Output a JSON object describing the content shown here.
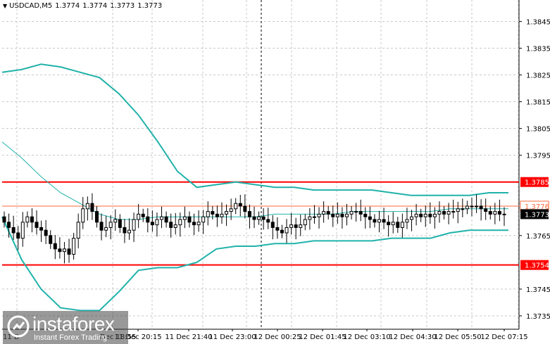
{
  "header": {
    "symbol": "USDCAD,M5",
    "quotes": [
      "1.3774",
      "1.3774",
      "1.3773",
      "1.3773"
    ]
  },
  "brand": {
    "name": "instaforex",
    "tagline": "Instant Forex Trading",
    "logo_icon": "instaforex-logo-icon"
  },
  "colors": {
    "bollinger": "#20b2aa",
    "moving_average": "#20b2aa",
    "support_resistance": "#ff0000",
    "grid": "#c8c8c8",
    "ask_line": "#ff6a3d",
    "candle": "#000000",
    "price_label_bg": "#ff0000",
    "current_price_bg": "#000000"
  },
  "chart_data": {
    "type": "candlestick",
    "ylim": [
      1.373,
      1.3853
    ],
    "y_ticks": [
      "1.3845",
      "1.3835",
      "1.3825",
      "1.3815",
      "1.3805",
      "1.3795",
      "1.3785",
      "1.3776",
      "1.3773",
      "1.3765",
      "1.3754",
      "1.3745",
      "1.3735"
    ],
    "x_ticks": [
      "11 Dec 20:15",
      "11 Dec 21:40",
      "11 Dec 23:00",
      "12 Dec 00:25",
      "12 Dec 01:45",
      "12 Dec 03:10",
      "12 Dec 04:30",
      "12 Dec 05:50",
      "12 Dec 07:15"
    ],
    "x_ticks_partial": [
      "11 D",
      "Dec 18:55"
    ],
    "grid": true,
    "levels": [
      {
        "value": 1.3785,
        "label": "1.3785",
        "kind": "resistance"
      },
      {
        "value": 1.3754,
        "label": "1.3754",
        "kind": "support"
      }
    ],
    "ask_line": {
      "value": 1.3776,
      "label": "1.3776"
    },
    "current_price": {
      "value": 1.3773,
      "label": "1.3773"
    },
    "closes": [
      1.377,
      1.3768,
      1.3766,
      1.3764,
      1.377,
      1.3772,
      1.377,
      1.3768,
      1.3767,
      1.3765,
      1.3762,
      1.376,
      1.3759,
      1.376,
      1.3758,
      1.3764,
      1.377,
      1.3775,
      1.3777,
      1.3774,
      1.377,
      1.3767,
      1.3768,
      1.377,
      1.3771,
      1.3768,
      1.3766,
      1.3767,
      1.3771,
      1.3773,
      1.3772,
      1.377,
      1.3769,
      1.3771,
      1.3772,
      1.377,
      1.3768,
      1.3769,
      1.3771,
      1.3772,
      1.377,
      1.3769,
      1.377,
      1.3772,
      1.3774,
      1.3773,
      1.3772,
      1.3773,
      1.3774,
      1.3775,
      1.3777,
      1.3776,
      1.3774,
      1.3772,
      1.3771,
      1.3772,
      1.3771,
      1.377,
      1.3768,
      1.3767,
      1.3766,
      1.3768,
      1.3769,
      1.3768,
      1.3769,
      1.3771,
      1.3772,
      1.3772,
      1.3773,
      1.3774,
      1.3773,
      1.3772,
      1.3773,
      1.3772,
      1.3773,
      1.3774,
      1.3774,
      1.3773,
      1.3772,
      1.3771,
      1.377,
      1.3771,
      1.377,
      1.3769,
      1.377,
      1.3768,
      1.377,
      1.3771,
      1.3772,
      1.3773,
      1.3772,
      1.3773,
      1.3772,
      1.3773,
      1.3774,
      1.3773,
      1.3774,
      1.3774,
      1.3775,
      1.3775,
      1.3776,
      1.3776,
      1.3776,
      1.3775,
      1.3774,
      1.3773,
      1.3774,
      1.3773,
      1.3773
    ],
    "bollinger_upper": [
      1.3826,
      1.3827,
      1.3829,
      1.3828,
      1.3826,
      1.3824,
      1.3818,
      1.381,
      1.38,
      1.3789,
      1.3783,
      1.3784,
      1.3785,
      1.3784,
      1.3783,
      1.3783,
      1.3782,
      1.3782,
      1.3782,
      1.3782,
      1.3781,
      1.378,
      1.378,
      1.378,
      1.378,
      1.3781,
      1.3781
    ],
    "bollinger_middle": [
      1.38,
      1.3794,
      1.3787,
      1.3781,
      1.3777,
      1.3773,
      1.3771,
      1.3771,
      1.3772,
      1.3772,
      1.3772,
      1.3772,
      1.3772,
      1.3772,
      1.3773,
      1.3773,
      1.3773,
      1.3773,
      1.3774,
      1.3774,
      1.3774,
      1.3774,
      1.3774,
      1.3775,
      1.3775,
      1.3775,
      1.3775
    ],
    "bollinger_lower": [
      1.3772,
      1.3756,
      1.3745,
      1.3738,
      1.3737,
      1.3737,
      1.3744,
      1.3752,
      1.3753,
      1.3753,
      1.3755,
      1.376,
      1.3761,
      1.3761,
      1.3762,
      1.3762,
      1.3763,
      1.3763,
      1.3763,
      1.3763,
      1.3764,
      1.3764,
      1.3764,
      1.3766,
      1.3767,
      1.3767,
      1.3767
    ]
  }
}
